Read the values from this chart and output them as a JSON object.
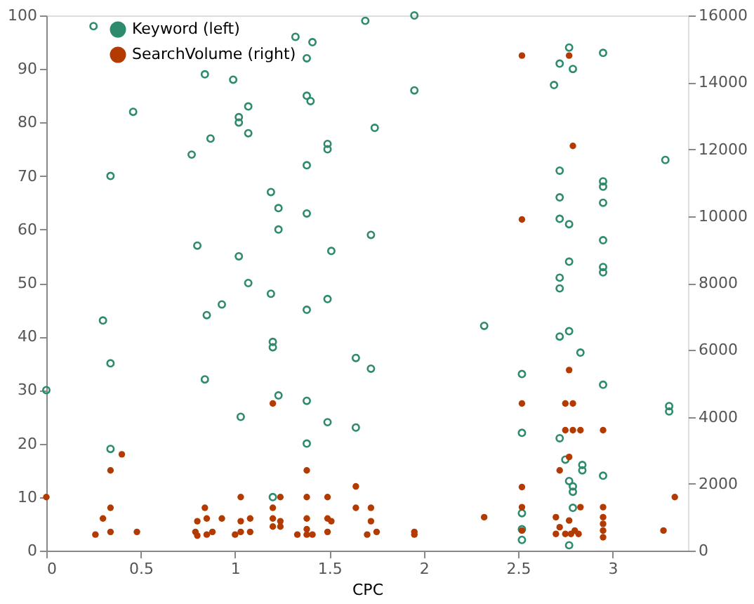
{
  "chart_data": {
    "type": "scatter",
    "xlabel": "CPC",
    "xlim": [
      0,
      3.4
    ],
    "xticks": [
      0,
      0.5,
      1,
      1.5,
      2,
      2.5,
      3
    ],
    "ylim": [
      0,
      100
    ],
    "yticks": [
      0,
      10,
      20,
      30,
      40,
      50,
      60,
      70,
      80,
      90,
      100
    ],
    "y2lim": [
      0,
      16000
    ],
    "y2ticks": [
      0,
      2000,
      4000,
      6000,
      8000,
      10000,
      12000,
      14000,
      16000
    ],
    "grid": false,
    "legend": "top",
    "marker": "circle",
    "series": [
      {
        "name": "Keyword (left)",
        "color": "#2e8b6e",
        "x": [
          0.25,
          0.34,
          0.46,
          0.77,
          0.84,
          0.87,
          0.99,
          1.02,
          1.02,
          1.07,
          1.07,
          1.19,
          1.23,
          1.23,
          1.32,
          1.38,
          1.41,
          1.38,
          1.4,
          1.38,
          1.38,
          1.49,
          1.49,
          1.51,
          0.8,
          1.02,
          1.07,
          1.19,
          0.93,
          1.49,
          1.38,
          0.3,
          0.34,
          0.34,
          0,
          0.85,
          0.84,
          1.03,
          1.2,
          1.2,
          1.23,
          1.38,
          1.38,
          1.49,
          1.64,
          1.64,
          1.72,
          1.2,
          1.69,
          1.74,
          1.72,
          1.95,
          1.95,
          2.77,
          2.95,
          2.72,
          2.79,
          2.69,
          3.28,
          2.72,
          2.95,
          2.95,
          2.72,
          2.95,
          2.72,
          2.77,
          2.95,
          2.77,
          2.95,
          2.95,
          2.72,
          2.72,
          2.32,
          2.52,
          2.52,
          2.72,
          2.77,
          2.83,
          2.95,
          3.3,
          3.3,
          2.72,
          2.75,
          2.84,
          2.84,
          2.95,
          2.77,
          2.79,
          2.79,
          2.79,
          2.52,
          2.52,
          2.52,
          2.77
        ],
        "values": [
          98,
          70,
          82,
          74,
          89,
          77,
          88,
          81,
          80,
          83,
          78,
          67,
          64,
          60,
          96,
          92,
          95,
          85,
          84,
          72,
          63,
          76,
          75,
          56,
          57,
          55,
          50,
          48,
          46,
          47,
          45,
          43,
          35,
          19,
          30,
          44,
          32,
          25,
          39,
          38,
          29,
          28,
          20,
          24,
          36,
          23,
          34,
          10,
          99,
          79,
          59,
          100,
          86,
          94,
          93,
          91,
          90,
          87,
          73,
          71,
          69,
          68,
          66,
          65,
          62,
          61,
          58,
          54,
          53,
          52,
          51,
          49,
          42,
          33,
          22,
          40,
          41,
          37,
          31,
          27,
          26,
          21,
          17,
          16,
          15,
          14,
          13,
          12,
          11,
          8,
          7,
          4,
          2,
          1
        ]
      },
      {
        "name": "SearchVolume (right)",
        "color": "#b33a00",
        "axis": "y2",
        "x": [
          2.52,
          2.77,
          2.79,
          2.52,
          2.77,
          2.52,
          2.75,
          2.79,
          2.75,
          2.79,
          2.83,
          2.95,
          2.77,
          2.72,
          2.52,
          3.33,
          2.52,
          2.83,
          2.95,
          2.32,
          2.52,
          2.7,
          2.72,
          2.75,
          2.77,
          2.8,
          2.7,
          2.78,
          2.82,
          2.95,
          2.95,
          2.95,
          2.95,
          3.27,
          0,
          0.26,
          0.3,
          0.34,
          0.34,
          0.34,
          0.4,
          0.48,
          0.79,
          0.8,
          0.8,
          0.84,
          0.85,
          0.85,
          0.88,
          0.93,
          1.0,
          1.03,
          1.03,
          1.03,
          1.08,
          1.08,
          1.2,
          1.2,
          1.2,
          1.2,
          1.24,
          1.24,
          1.24,
          1.33,
          1.38,
          1.38,
          1.38,
          1.38,
          1.38,
          1.41,
          1.49,
          1.49,
          1.51,
          1.49,
          1.64,
          1.64,
          1.7,
          1.72,
          1.72,
          1.75,
          1.95,
          1.95
        ],
        "values": [
          14800,
          14800,
          12100,
          9900,
          5400,
          4400,
          4400,
          4400,
          3600,
          3600,
          3600,
          3600,
          2800,
          2400,
          1900,
          1600,
          1300,
          1300,
          1300,
          1000,
          600,
          1000,
          700,
          500,
          900,
          600,
          500,
          500,
          500,
          1000,
          800,
          600,
          400,
          600,
          1600,
          480,
          960,
          2400,
          1280,
          560,
          2880,
          560,
          560,
          880,
          450,
          1280,
          960,
          480,
          560,
          960,
          480,
          1600,
          880,
          560,
          960,
          560,
          4400,
          1280,
          960,
          720,
          1600,
          880,
          720,
          480,
          2400,
          1600,
          960,
          640,
          480,
          480,
          1600,
          960,
          880,
          560,
          1920,
          1280,
          480,
          1280,
          880,
          560,
          560,
          480
        ]
      }
    ]
  }
}
